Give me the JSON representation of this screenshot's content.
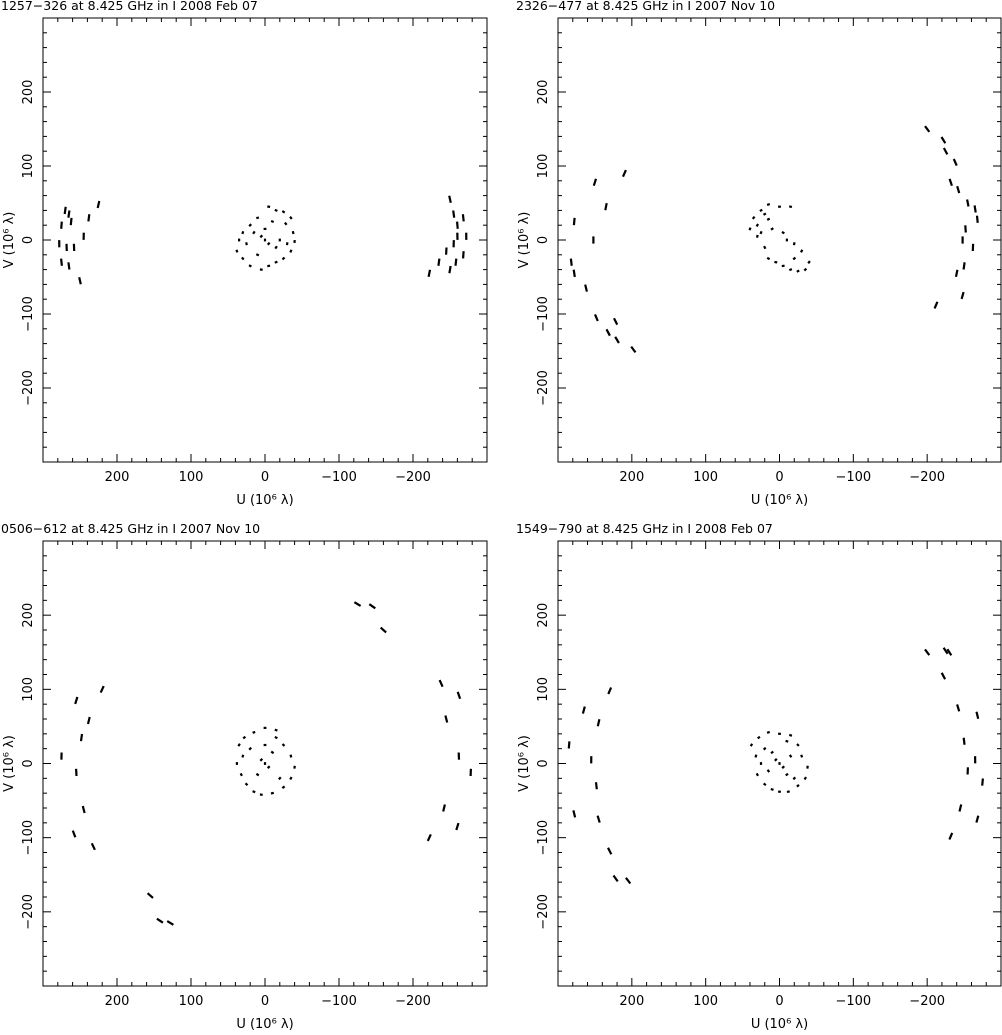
{
  "colors": {
    "background": "#ffffff",
    "ink": "#000000"
  },
  "chart_data": [
    {
      "type": "scatter",
      "title": "1257−326 at 8.425 GHz in I  2008 Feb 07",
      "xlabel": "U (10⁶ λ)",
      "ylabel": "V (10⁶ λ)",
      "xlim": [
        300,
        -300
      ],
      "ylim": [
        -300,
        300
      ],
      "xticks": [
        200,
        100,
        0,
        -100,
        -200
      ],
      "yticks": [
        -200,
        -100,
        0,
        100,
        200
      ],
      "xtick_labels": [
        "200",
        "100",
        "0",
        "−100",
        "−200"
      ],
      "ytick_labels": [
        "−200",
        "−100",
        "0",
        "100",
        "200"
      ],
      "grid": false,
      "marker": "short dash segment",
      "points": [
        [
          -250,
          55
        ],
        [
          -255,
          35
        ],
        [
          -268,
          30
        ],
        [
          -260,
          20
        ],
        [
          -272,
          5
        ],
        [
          -260,
          5
        ],
        [
          -255,
          -5
        ],
        [
          -268,
          -20
        ],
        [
          -258,
          -30
        ],
        [
          -245,
          -15
        ],
        [
          -235,
          -30
        ],
        [
          -222,
          -45
        ],
        [
          -250,
          -40
        ],
        [
          270,
          40
        ],
        [
          265,
          35
        ],
        [
          275,
          20
        ],
        [
          262,
          25
        ],
        [
          278,
          -5
        ],
        [
          268,
          -10
        ],
        [
          275,
          -30
        ],
        [
          265,
          -35
        ],
        [
          250,
          -55
        ],
        [
          258,
          -10
        ],
        [
          245,
          5
        ],
        [
          238,
          30
        ],
        [
          225,
          48
        ],
        [
          -5,
          45
        ],
        [
          -15,
          40
        ],
        [
          -25,
          38
        ],
        [
          -35,
          30
        ],
        [
          -28,
          22
        ],
        [
          -38,
          10
        ],
        [
          -40,
          -2
        ],
        [
          -30,
          -5
        ],
        [
          -35,
          -15
        ],
        [
          -25,
          -25
        ],
        [
          -15,
          -30
        ],
        [
          -5,
          -35
        ],
        [
          5,
          -40
        ],
        [
          20,
          -35
        ],
        [
          30,
          -25
        ],
        [
          38,
          -15
        ],
        [
          35,
          0
        ],
        [
          30,
          10
        ],
        [
          20,
          20
        ],
        [
          10,
          30
        ],
        [
          15,
          10
        ],
        [
          5,
          5
        ],
        [
          -5,
          -5
        ],
        [
          -15,
          -10
        ],
        [
          0,
          0
        ],
        [
          0,
          15
        ],
        [
          -10,
          25
        ],
        [
          10,
          -20
        ],
        [
          -20,
          0
        ],
        [
          25,
          -5
        ]
      ]
    },
    {
      "type": "scatter",
      "title": "2326−477 at 8.425 GHz in I  2007 Nov 10",
      "xlabel": "U (10⁶ λ)",
      "ylabel": "V (10⁶ λ)",
      "xlim": [
        300,
        -300
      ],
      "ylim": [
        -300,
        300
      ],
      "xticks": [
        200,
        100,
        0,
        -100,
        -200
      ],
      "yticks": [
        -200,
        -100,
        0,
        100,
        200
      ],
      "xtick_labels": [
        "200",
        "100",
        "0",
        "−100",
        "−200"
      ],
      "ytick_labels": [
        "−200",
        "−100",
        "0",
        "100",
        "200"
      ],
      "grid": false,
      "marker": "short dash segment",
      "points": [
        [
          210,
          90
        ],
        [
          250,
          78
        ],
        [
          235,
          45
        ],
        [
          278,
          25
        ],
        [
          252,
          0
        ],
        [
          282,
          -30
        ],
        [
          278,
          -45
        ],
        [
          262,
          -65
        ],
        [
          248,
          -105
        ],
        [
          222,
          -110
        ],
        [
          232,
          -125
        ],
        [
          220,
          -135
        ],
        [
          198,
          -148
        ],
        [
          -200,
          150
        ],
        [
          -222,
          135
        ],
        [
          -225,
          120
        ],
        [
          -238,
          105
        ],
        [
          -232,
          78
        ],
        [
          -242,
          68
        ],
        [
          -255,
          50
        ],
        [
          -265,
          42
        ],
        [
          -268,
          28
        ],
        [
          -252,
          15
        ],
        [
          -248,
          0
        ],
        [
          -262,
          -10
        ],
        [
          -250,
          -35
        ],
        [
          -240,
          -45
        ],
        [
          -248,
          -75
        ],
        [
          -212,
          -88
        ],
        [
          0,
          45
        ],
        [
          -15,
          45
        ],
        [
          15,
          48
        ],
        [
          25,
          40
        ],
        [
          35,
          30
        ],
        [
          40,
          15
        ],
        [
          30,
          5
        ],
        [
          20,
          -10
        ],
        [
          15,
          -25
        ],
        [
          5,
          -30
        ],
        [
          -5,
          -35
        ],
        [
          -15,
          -40
        ],
        [
          -25,
          -42
        ],
        [
          -35,
          -40
        ],
        [
          -40,
          -30
        ],
        [
          -30,
          -15
        ],
        [
          -20,
          -5
        ],
        [
          -10,
          0
        ],
        [
          -5,
          10
        ],
        [
          10,
          15
        ],
        [
          15,
          28
        ],
        [
          20,
          35
        ],
        [
          30,
          20
        ],
        [
          25,
          10
        ],
        [
          -20,
          -25
        ]
      ]
    },
    {
      "type": "scatter",
      "title": "0506−612 at 8.425 GHz in I  2007 Nov 10",
      "xlabel": "U (10⁶ λ)",
      "ylabel": "V (10⁶ λ)",
      "xlim": [
        300,
        -300
      ],
      "ylim": [
        -300,
        300
      ],
      "xticks": [
        200,
        100,
        0,
        -100,
        -200
      ],
      "yticks": [
        -200,
        -100,
        0,
        100,
        200
      ],
      "xtick_labels": [
        "200",
        "100",
        "0",
        "−100",
        "−200"
      ],
      "ytick_labels": [
        "−200",
        "−100",
        "0",
        "100",
        "200"
      ],
      "grid": false,
      "marker": "short dash segment",
      "points": [
        [
          220,
          100
        ],
        [
          255,
          85
        ],
        [
          238,
          58
        ],
        [
          248,
          35
        ],
        [
          275,
          10
        ],
        [
          255,
          -12
        ],
        [
          245,
          -62
        ],
        [
          258,
          -95
        ],
        [
          232,
          -112
        ],
        [
          -125,
          215
        ],
        [
          -145,
          212
        ],
        [
          -160,
          180
        ],
        [
          155,
          -178
        ],
        [
          142,
          -212
        ],
        [
          128,
          -215
        ],
        [
          -238,
          108
        ],
        [
          -262,
          92
        ],
        [
          -245,
          60
        ],
        [
          -262,
          10
        ],
        [
          -278,
          -12
        ],
        [
          -242,
          -60
        ],
        [
          -260,
          -85
        ],
        [
          -222,
          -100
        ],
        [
          0,
          48
        ],
        [
          -15,
          45
        ],
        [
          15,
          42
        ],
        [
          28,
          35
        ],
        [
          35,
          25
        ],
        [
          30,
          10
        ],
        [
          38,
          0
        ],
        [
          32,
          -15
        ],
        [
          25,
          -28
        ],
        [
          15,
          -38
        ],
        [
          5,
          -42
        ],
        [
          -10,
          -40
        ],
        [
          -25,
          -32
        ],
        [
          -35,
          -20
        ],
        [
          -40,
          -5
        ],
        [
          -35,
          10
        ],
        [
          -25,
          25
        ],
        [
          -15,
          35
        ],
        [
          0,
          0
        ],
        [
          5,
          5
        ],
        [
          -5,
          -5
        ],
        [
          10,
          -15
        ],
        [
          -10,
          15
        ],
        [
          20,
          20
        ],
        [
          -20,
          -20
        ],
        [
          0,
          25
        ]
      ]
    },
    {
      "type": "scatter",
      "title": "1549−790 at 8.425 GHz in I  2008 Feb 07",
      "xlabel": "U (10⁶ λ)",
      "ylabel": "V (10⁶ λ)",
      "xlim": [
        300,
        -300
      ],
      "ylim": [
        -300,
        300
      ],
      "xticks": [
        200,
        100,
        0,
        -100,
        -200
      ],
      "yticks": [
        -200,
        -100,
        0,
        100,
        200
      ],
      "xtick_labels": [
        "200",
        "100",
        "0",
        "−100",
        "−200"
      ],
      "ytick_labels": [
        "−200",
        "−100",
        "0",
        "100",
        "200"
      ],
      "grid": false,
      "marker": "short dash segment",
      "points": [
        [
          -200,
          150
        ],
        [
          -225,
          152
        ],
        [
          -230,
          150
        ],
        [
          -222,
          118
        ],
        [
          -242,
          75
        ],
        [
          -268,
          65
        ],
        [
          -250,
          30
        ],
        [
          -265,
          5
        ],
        [
          -255,
          -10
        ],
        [
          -275,
          -25
        ],
        [
          -245,
          -60
        ],
        [
          -268,
          -75
        ],
        [
          -232,
          -98
        ],
        [
          230,
          98
        ],
        [
          265,
          72
        ],
        [
          245,
          55
        ],
        [
          285,
          25
        ],
        [
          255,
          5
        ],
        [
          248,
          -30
        ],
        [
          278,
          -68
        ],
        [
          245,
          -75
        ],
        [
          230,
          -118
        ],
        [
          222,
          -155
        ],
        [
          205,
          -158
        ],
        [
          0,
          40
        ],
        [
          -15,
          38
        ],
        [
          15,
          42
        ],
        [
          28,
          35
        ],
        [
          38,
          25
        ],
        [
          32,
          10
        ],
        [
          25,
          0
        ],
        [
          30,
          -15
        ],
        [
          20,
          -28
        ],
        [
          10,
          -35
        ],
        [
          0,
          -38
        ],
        [
          -12,
          -38
        ],
        [
          -25,
          -30
        ],
        [
          -35,
          -20
        ],
        [
          -38,
          -5
        ],
        [
          -30,
          10
        ],
        [
          -25,
          25
        ],
        [
          -10,
          30
        ],
        [
          0,
          0
        ],
        [
          5,
          5
        ],
        [
          -5,
          -5
        ],
        [
          10,
          15
        ],
        [
          -10,
          -15
        ],
        [
          15,
          -10
        ],
        [
          -15,
          10
        ],
        [
          20,
          20
        ],
        [
          -20,
          -20
        ]
      ]
    }
  ]
}
